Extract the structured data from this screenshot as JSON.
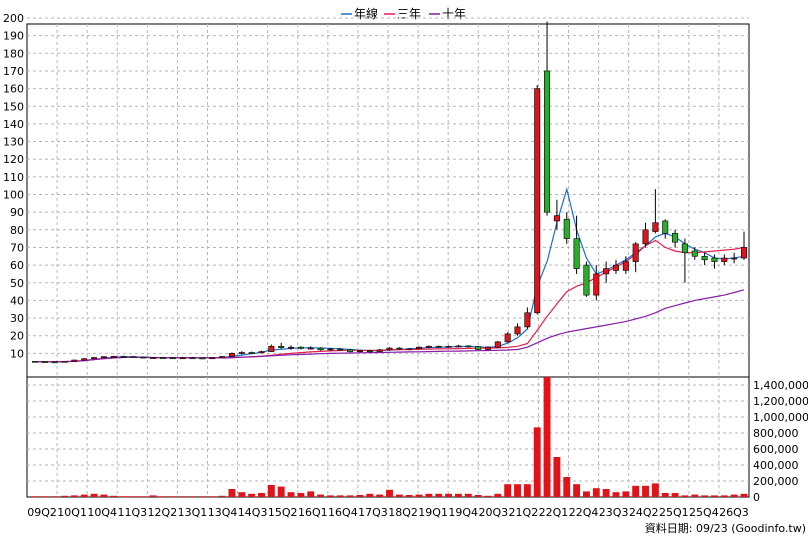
{
  "chart_data": {
    "type": "candlestick+line+bar",
    "legend": {
      "placement": "top-center",
      "items": [
        {
          "name": "年線",
          "color": "#1e6fd0"
        },
        {
          "name": "三年",
          "color": "#e0204a"
        },
        {
          "name": "十年",
          "color": "#8a1aa8"
        }
      ]
    },
    "x_tick_labels": [
      "09Q2",
      "10Q1",
      "10Q4",
      "11Q3",
      "12Q2",
      "13Q1",
      "13Q4",
      "14Q3",
      "15Q2",
      "16Q1",
      "16Q4",
      "17Q3",
      "18Q2",
      "19Q1",
      "19Q4",
      "20Q3",
      "21Q2",
      "22Q1",
      "22Q4",
      "23Q3",
      "24Q2",
      "25Q1",
      "25Q4",
      "26Q3"
    ],
    "price_axis": {
      "ticks": [
        10,
        20,
        30,
        40,
        50,
        60,
        70,
        80,
        90,
        100,
        110,
        120,
        130,
        140,
        150,
        160,
        170,
        180,
        190,
        200
      ],
      "ylim": [
        0,
        200
      ]
    },
    "volume_axis": {
      "tick_labels": [
        "1,400,000",
        "1,200,000",
        "1,000,000",
        "800,000",
        "600,000",
        "400,000",
        "200,000",
        "0"
      ],
      "ticks": [
        1400000,
        1200000,
        1000000,
        800000,
        600000,
        400000,
        200000,
        0
      ],
      "ylim": [
        0,
        1500000
      ]
    },
    "candles": [
      [
        5.5,
        5.5,
        5.2,
        5.3
      ],
      [
        5.3,
        5.4,
        5.0,
        5.2
      ],
      [
        5.2,
        5.3,
        4.9,
        5.0
      ],
      [
        5.0,
        5.6,
        4.9,
        5.5
      ],
      [
        5.5,
        6.4,
        5.4,
        6.2
      ],
      [
        6.2,
        7.2,
        6.0,
        7.0
      ],
      [
        7.0,
        7.9,
        6.8,
        7.6
      ],
      [
        7.6,
        8.4,
        7.4,
        8.1
      ],
      [
        8.1,
        8.6,
        7.8,
        8.3
      ],
      [
        8.3,
        8.7,
        7.9,
        8.1
      ],
      [
        8.1,
        8.4,
        7.6,
        7.9
      ],
      [
        7.9,
        8.2,
        7.3,
        7.5
      ],
      [
        7.5,
        7.9,
        7.2,
        7.6
      ],
      [
        7.6,
        7.9,
        7.3,
        7.5
      ],
      [
        7.5,
        7.8,
        7.2,
        7.4
      ],
      [
        7.4,
        7.8,
        7.2,
        7.5
      ],
      [
        7.5,
        7.8,
        7.2,
        7.4
      ],
      [
        7.4,
        7.7,
        7.1,
        7.3
      ],
      [
        7.3,
        7.7,
        7.1,
        7.5
      ],
      [
        7.5,
        8.5,
        7.3,
        8.2
      ],
      [
        8.2,
        10.5,
        8.0,
        10.0
      ],
      [
        10.0,
        11.2,
        9.4,
        10.5
      ],
      [
        10.5,
        11.0,
        9.8,
        10.3
      ],
      [
        10.3,
        11.5,
        10.0,
        11.0
      ],
      [
        11.0,
        15.0,
        10.8,
        14.0
      ],
      [
        14.0,
        16.0,
        12.5,
        13.2
      ],
      [
        13.2,
        14.5,
        12.0,
        13.5
      ],
      [
        13.5,
        14.0,
        12.2,
        12.8
      ],
      [
        12.8,
        14.0,
        12.2,
        13.0
      ],
      [
        13.0,
        13.5,
        11.5,
        12.0
      ],
      [
        12.0,
        13.0,
        11.5,
        12.5
      ],
      [
        12.5,
        13.0,
        11.5,
        12.0
      ],
      [
        12.0,
        12.5,
        10.5,
        11.0
      ],
      [
        11.0,
        12.0,
        10.5,
        11.5
      ],
      [
        11.5,
        12.0,
        10.6,
        11.0
      ],
      [
        11.0,
        12.5,
        10.8,
        12.0
      ],
      [
        12.0,
        13.5,
        11.5,
        13.0
      ],
      [
        13.0,
        13.5,
        12.0,
        12.5
      ],
      [
        12.5,
        13.0,
        11.8,
        12.6
      ],
      [
        12.6,
        14.0,
        12.4,
        13.5
      ],
      [
        13.5,
        14.5,
        13.0,
        14.0
      ],
      [
        14.0,
        14.5,
        13.2,
        13.6
      ],
      [
        13.6,
        14.5,
        13.2,
        14.0
      ],
      [
        14.0,
        14.8,
        13.5,
        14.2
      ],
      [
        14.2,
        14.6,
        13.4,
        13.8
      ],
      [
        13.8,
        14.2,
        11.8,
        12.2
      ],
      [
        12.2,
        14.0,
        11.8,
        13.5
      ],
      [
        13.5,
        17.0,
        13.2,
        16.5
      ],
      [
        16.5,
        22.0,
        16.0,
        21.0
      ],
      [
        21.0,
        27.0,
        20.0,
        25.0
      ],
      [
        25.0,
        36.0,
        24.0,
        33.0
      ],
      [
        33.0,
        162.0,
        32.0,
        160.0
      ],
      [
        170.0,
        198.0,
        88.0,
        90.0
      ],
      [
        85.0,
        97.0,
        80.0,
        88.0
      ],
      [
        86.0,
        90.0,
        72.0,
        75.0
      ],
      [
        75.0,
        88.0,
        55.0,
        58.0
      ],
      [
        60.0,
        62.0,
        42.0,
        43.0
      ],
      [
        43.0,
        60.0,
        40.0,
        55.0
      ],
      [
        55.0,
        62.0,
        50.0,
        58.0
      ],
      [
        57.0,
        63.0,
        55.0,
        60.0
      ],
      [
        57.0,
        65.0,
        55.0,
        62.0
      ],
      [
        62.0,
        73.0,
        56.0,
        72.0
      ],
      [
        72.0,
        84.0,
        70.0,
        80.0
      ],
      [
        79.0,
        103.0,
        78.0,
        84.0
      ],
      [
        85.0,
        86.0,
        75.0,
        78.0
      ],
      [
        78.0,
        80.0,
        70.0,
        73.0
      ],
      [
        72.0,
        75.0,
        50.0,
        67.0
      ],
      [
        68.0,
        70.0,
        63.0,
        65.0
      ],
      [
        65.0,
        67.0,
        60.0,
        63.0
      ],
      [
        64.0,
        66.0,
        58.0,
        62.0
      ],
      [
        62.0,
        66.0,
        60.0,
        64.0
      ],
      [
        64.0,
        67.0,
        61.0,
        64.0
      ],
      [
        64.0,
        79.0,
        63.0,
        70.0
      ]
    ],
    "series": [
      {
        "name": "年線",
        "color": "#1e6fd0",
        "values": [
          5.3,
          5.2,
          5.2,
          5.3,
          5.5,
          5.9,
          6.5,
          7.2,
          7.8,
          8.1,
          8.0,
          7.8,
          7.6,
          7.5,
          7.4,
          7.4,
          7.4,
          7.4,
          7.4,
          7.6,
          8.3,
          9.0,
          9.8,
          10.6,
          11.9,
          12.3,
          12.8,
          13.1,
          13.2,
          13.0,
          12.8,
          12.6,
          12.2,
          11.8,
          11.5,
          11.5,
          11.9,
          12.1,
          12.5,
          12.9,
          13.3,
          13.4,
          13.6,
          13.8,
          14.0,
          13.7,
          13.4,
          13.9,
          15.8,
          18.8,
          23.8,
          48.0,
          62.0,
          84.0,
          103.0,
          80.0,
          64.0,
          55.0,
          57.0,
          60.0,
          63.0,
          67.0,
          71.0,
          76.0,
          78.0,
          76.0,
          72.0,
          69.0,
          67.0,
          64.0,
          63.5,
          64.0,
          65.0
        ]
      },
      {
        "name": "三年",
        "color": "#e0204a",
        "values": [
          5.3,
          5.2,
          5.2,
          5.3,
          5.5,
          5.9,
          6.5,
          7.0,
          7.4,
          7.7,
          7.8,
          7.7,
          7.6,
          7.5,
          7.5,
          7.5,
          7.4,
          7.4,
          7.4,
          7.4,
          7.6,
          7.8,
          8.1,
          8.4,
          8.9,
          9.5,
          10.0,
          10.4,
          10.8,
          11.1,
          11.4,
          11.6,
          11.7,
          11.7,
          11.7,
          11.8,
          12.0,
          12.1,
          12.2,
          12.3,
          12.4,
          12.5,
          12.6,
          12.7,
          12.8,
          12.9,
          13.0,
          13.1,
          13.4,
          14.0,
          15.5,
          23.0,
          31.0,
          38.0,
          45.0,
          48.0,
          50.0,
          53.0,
          56.0,
          59.0,
          62.0,
          66.0,
          71.0,
          74.0,
          70.0,
          68.0,
          67.0,
          67.0,
          67.5,
          68.0,
          68.5,
          69.0,
          70.0
        ]
      },
      {
        "name": "十年",
        "color": "#8a1aa8",
        "values": [
          5.3,
          5.2,
          5.2,
          5.3,
          5.5,
          5.9,
          6.5,
          7.0,
          7.4,
          7.7,
          7.8,
          7.7,
          7.6,
          7.5,
          7.5,
          7.5,
          7.4,
          7.4,
          7.4,
          7.4,
          7.6,
          7.8,
          8.0,
          8.3,
          8.6,
          8.9,
          9.2,
          9.4,
          9.6,
          9.8,
          10.0,
          10.1,
          10.2,
          10.3,
          10.4,
          10.5,
          10.6,
          10.7,
          10.8,
          10.9,
          11.0,
          11.1,
          11.2,
          11.3,
          11.4,
          11.5,
          11.6,
          11.7,
          11.9,
          12.2,
          13.5,
          16.0,
          18.5,
          20.5,
          22.0,
          23.0,
          24.0,
          25.0,
          26.0,
          27.0,
          28.0,
          29.5,
          31.0,
          33.0,
          35.5,
          37.0,
          38.5,
          40.0,
          41.0,
          42.0,
          43.0,
          44.5,
          46.0
        ]
      }
    ],
    "volume": [
      {
        "v": 10000,
        "red": true
      },
      {
        "v": 10000,
        "red": true
      },
      {
        "v": 10000,
        "red": true
      },
      {
        "v": 15000,
        "red": true
      },
      {
        "v": 20000,
        "red": true
      },
      {
        "v": 30000,
        "red": true
      },
      {
        "v": 40000,
        "red": true
      },
      {
        "v": 30000,
        "red": true
      },
      {
        "v": 15000,
        "red": true
      },
      {
        "v": 10000,
        "red": true
      },
      {
        "v": 10000,
        "red": true
      },
      {
        "v": 10000,
        "red": true
      },
      {
        "v": 20000,
        "red": true
      },
      {
        "v": 10000,
        "red": true
      },
      {
        "v": 10000,
        "red": true
      },
      {
        "v": 10000,
        "red": true
      },
      {
        "v": 10000,
        "red": true
      },
      {
        "v": 10000,
        "red": true
      },
      {
        "v": 10000,
        "red": true
      },
      {
        "v": 15000,
        "red": true
      },
      {
        "v": 100000,
        "red": true
      },
      {
        "v": 60000,
        "red": true
      },
      {
        "v": 40000,
        "red": true
      },
      {
        "v": 50000,
        "red": true
      },
      {
        "v": 150000,
        "red": true
      },
      {
        "v": 130000,
        "red": true
      },
      {
        "v": 60000,
        "red": true
      },
      {
        "v": 50000,
        "red": true
      },
      {
        "v": 70000,
        "red": true
      },
      {
        "v": 30000,
        "red": true
      },
      {
        "v": 20000,
        "red": true
      },
      {
        "v": 20000,
        "red": true
      },
      {
        "v": 20000,
        "red": true
      },
      {
        "v": 25000,
        "red": true
      },
      {
        "v": 40000,
        "red": true
      },
      {
        "v": 30000,
        "red": true
      },
      {
        "v": 90000,
        "red": true
      },
      {
        "v": 30000,
        "red": true
      },
      {
        "v": 25000,
        "red": true
      },
      {
        "v": 30000,
        "red": true
      },
      {
        "v": 40000,
        "red": true
      },
      {
        "v": 40000,
        "red": true
      },
      {
        "v": 40000,
        "red": true
      },
      {
        "v": 40000,
        "red": true
      },
      {
        "v": 40000,
        "red": true
      },
      {
        "v": 25000,
        "red": true
      },
      {
        "v": 15000,
        "red": true
      },
      {
        "v": 40000,
        "red": true
      },
      {
        "v": 160000,
        "red": true
      },
      {
        "v": 160000,
        "red": true
      },
      {
        "v": 160000,
        "red": true
      },
      {
        "v": 870000,
        "red": true
      },
      {
        "v": 1560000,
        "red": true
      },
      {
        "v": 500000,
        "red": true
      },
      {
        "v": 250000,
        "red": true
      },
      {
        "v": 160000,
        "red": true
      },
      {
        "v": 70000,
        "red": true
      },
      {
        "v": 110000,
        "red": true
      },
      {
        "v": 100000,
        "red": true
      },
      {
        "v": 60000,
        "red": true
      },
      {
        "v": 70000,
        "red": true
      },
      {
        "v": 140000,
        "red": true
      },
      {
        "v": 140000,
        "red": true
      },
      {
        "v": 170000,
        "red": true
      },
      {
        "v": 50000,
        "red": true
      },
      {
        "v": 50000,
        "red": true
      },
      {
        "v": 20000,
        "red": true
      },
      {
        "v": 30000,
        "red": true
      },
      {
        "v": 20000,
        "red": true
      },
      {
        "v": 20000,
        "red": true
      },
      {
        "v": 20000,
        "red": true
      },
      {
        "v": 30000,
        "red": true
      },
      {
        "v": 40000,
        "red": true
      }
    ],
    "colors": {
      "up": "#e0121a",
      "down": "#2eaa2e",
      "grid": "#b7b7b7",
      "volume": "#e0121a"
    },
    "grid": true,
    "footer": "資料日期: 09/23  (Goodinfo.tw)"
  }
}
